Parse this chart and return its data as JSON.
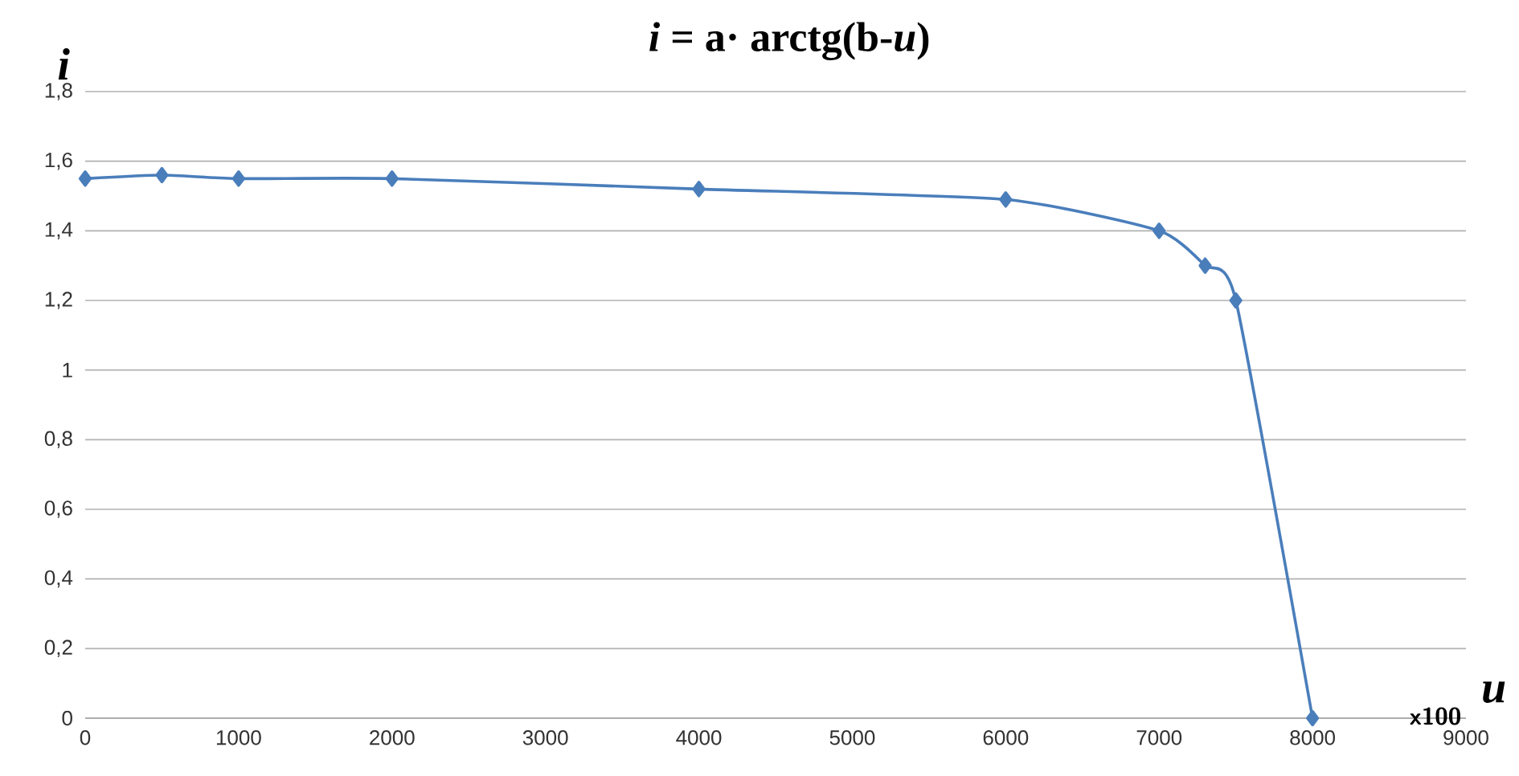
{
  "chart_data": {
    "type": "line",
    "title": "*i* = a· arctg(b-*u*)",
    "xlabel": "u",
    "ylabel": "i",
    "annotations": [
      "x100"
    ],
    "x": [
      0,
      500,
      1000,
      2000,
      4000,
      6000,
      7000,
      7300,
      7500,
      8000
    ],
    "series": [
      {
        "color": "#4a7ebb",
        "values": [
          1.55,
          1.56,
          1.55,
          1.55,
          1.52,
          1.49,
          1.4,
          1.3,
          1.2,
          0
        ]
      }
    ],
    "xlim": [
      0,
      9000
    ],
    "xticks": [
      0,
      1000,
      2000,
      3000,
      4000,
      5000,
      6000,
      7000,
      8000,
      9000
    ],
    "ylim": [
      0,
      1.8
    ],
    "yticks": [
      0,
      {
        "value": 0.2,
        "label": "0,2"
      },
      {
        "value": 0.4,
        "label": "0,4"
      },
      {
        "value": 0.6,
        "label": "0,6"
      },
      {
        "value": 0.8,
        "label": "0,8"
      },
      1,
      {
        "value": 1.2,
        "label": "1,2"
      },
      {
        "value": 1.4,
        "label": "1,4"
      },
      {
        "value": 1.6,
        "label": "1,6"
      },
      {
        "value": 1.8,
        "label": "1,8"
      }
    ],
    "grid": "y",
    "marker": "diamond",
    "line_style": "solid"
  }
}
